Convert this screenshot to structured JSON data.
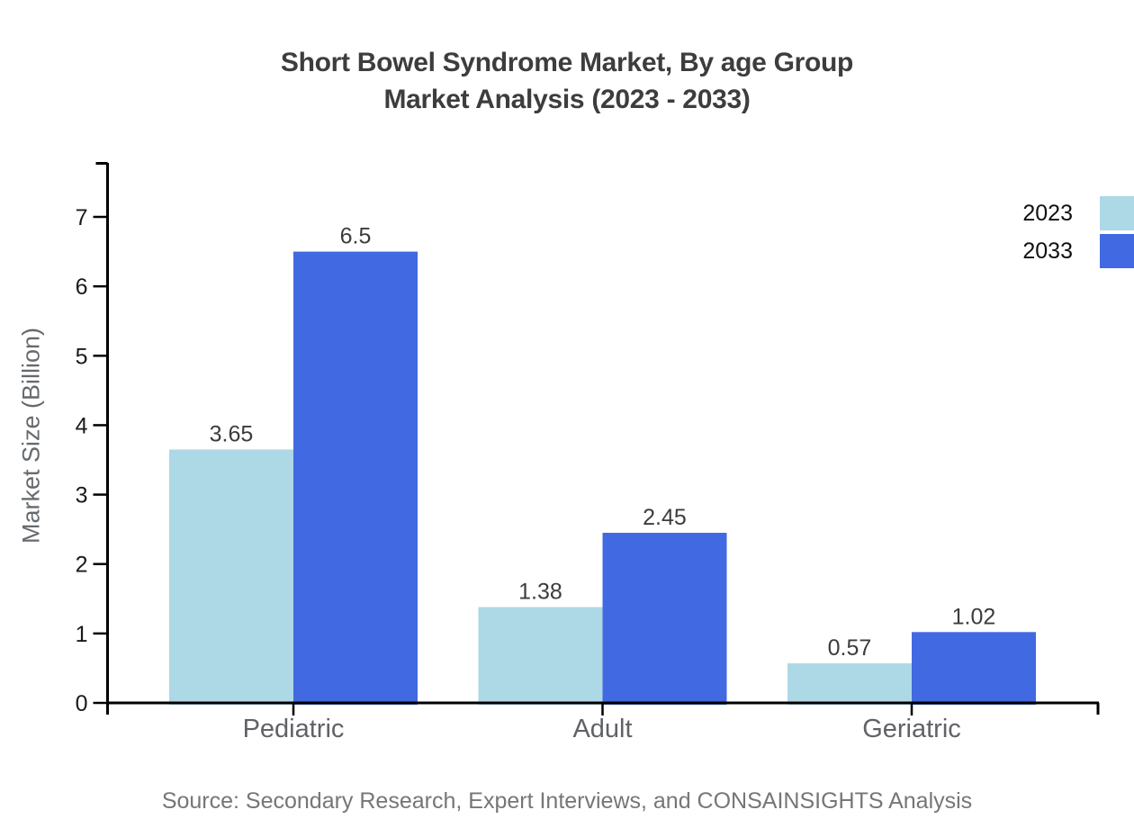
{
  "title": {
    "line1": "Short Bowel Syndrome Market, By age Group",
    "line2": "Market Analysis (2023 - 2033)"
  },
  "y_axis": {
    "label": "Market Size (Billion)",
    "ticks": [
      0,
      1,
      2,
      3,
      4,
      5,
      6,
      7
    ]
  },
  "legend": [
    {
      "label": "2023",
      "color": "#ADD8E6"
    },
    {
      "label": "2033",
      "color": "#4169E1"
    }
  ],
  "source": "Source: Secondary Research, Expert Interviews, and CONSAINSIGHTS Analysis",
  "chart_data": {
    "type": "bar",
    "title": "Short Bowel Syndrome Market, By age Group Market Analysis (2023 - 2033)",
    "categories": [
      "Pediatric",
      "Adult",
      "Geriatric"
    ],
    "series": [
      {
        "name": "2023",
        "color": "#ADD8E6",
        "values": [
          3.65,
          1.38,
          0.57
        ],
        "labels": [
          "3.65",
          "1.38",
          "0.57"
        ]
      },
      {
        "name": "2033",
        "color": "#4169E1",
        "values": [
          6.5,
          2.45,
          1.02
        ],
        "labels": [
          "6.5",
          "2.45",
          "1.02"
        ]
      }
    ],
    "xlabel": "",
    "ylabel": "Market Size (Billion)",
    "ylim": [
      0,
      7.78
    ],
    "yticks": [
      0,
      1,
      2,
      3,
      4,
      5,
      6,
      7
    ],
    "grid": false,
    "legend_position": "top-right"
  }
}
